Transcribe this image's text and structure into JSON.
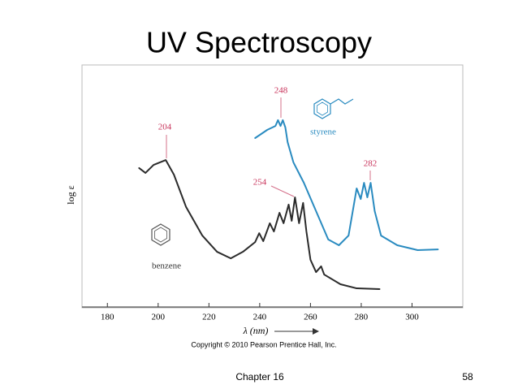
{
  "title": "UV Spectroscopy",
  "chart_data": {
    "type": "line",
    "ylabel": "log ε",
    "xlabel": "λ (nm)",
    "xlim": [
      170,
      320
    ],
    "xticks": [
      180,
      200,
      220,
      240,
      260,
      280,
      300
    ],
    "ylim": [
      0,
      100
    ],
    "series": [
      {
        "name": "benzene",
        "color": "#2b2b2b",
        "x": [
          192.5,
          195,
          198.2,
          203,
          206.2,
          211,
          217.4,
          223.2,
          228.6,
          233.4,
          238.2,
          239.8,
          241.4,
          244,
          245.6,
          247.8,
          249.4,
          251.4,
          252.6,
          253.9,
          255.5,
          257.1,
          258.4,
          260,
          262.2,
          264.2,
          265.4,
          271.8,
          278.2,
          287.2
        ],
        "values": [
          57.4,
          55.4,
          58.7,
          60.7,
          54.7,
          41.3,
          29.5,
          22.8,
          20.1,
          22.8,
          26.8,
          30.5,
          27.2,
          34.6,
          31.2,
          38.9,
          34.6,
          42.3,
          35.6,
          45.3,
          34.6,
          43,
          31.2,
          19.5,
          14.4,
          16.8,
          13.4,
          9.4,
          7.7,
          7.4
        ]
      },
      {
        "name": "styrene",
        "color": "#2a8bc0",
        "x": [
          238.2,
          243,
          246.2,
          247.2,
          248.2,
          249.1,
          250.1,
          251,
          253.3,
          257.4,
          262.2,
          267,
          271.2,
          275,
          278.2,
          279.8,
          281.1,
          282.4,
          283.7,
          285.3,
          287.8,
          294.2,
          302.2,
          310.2
        ],
        "values": [
          69.8,
          73.2,
          74.8,
          77.2,
          74.8,
          77.2,
          74.2,
          68.1,
          59.7,
          51.3,
          39.6,
          27.9,
          25.5,
          29.5,
          49,
          44.6,
          51.3,
          45.3,
          51.3,
          39.6,
          29.5,
          25.5,
          23.5,
          23.8
        ]
      }
    ],
    "annotations": [
      "204",
      "248",
      "254",
      "282"
    ]
  },
  "copyright": "Copyright © 2010 Pearson Prentice Hall, Inc.",
  "footer": {
    "chapter": "Chapter 16",
    "page": "58"
  }
}
